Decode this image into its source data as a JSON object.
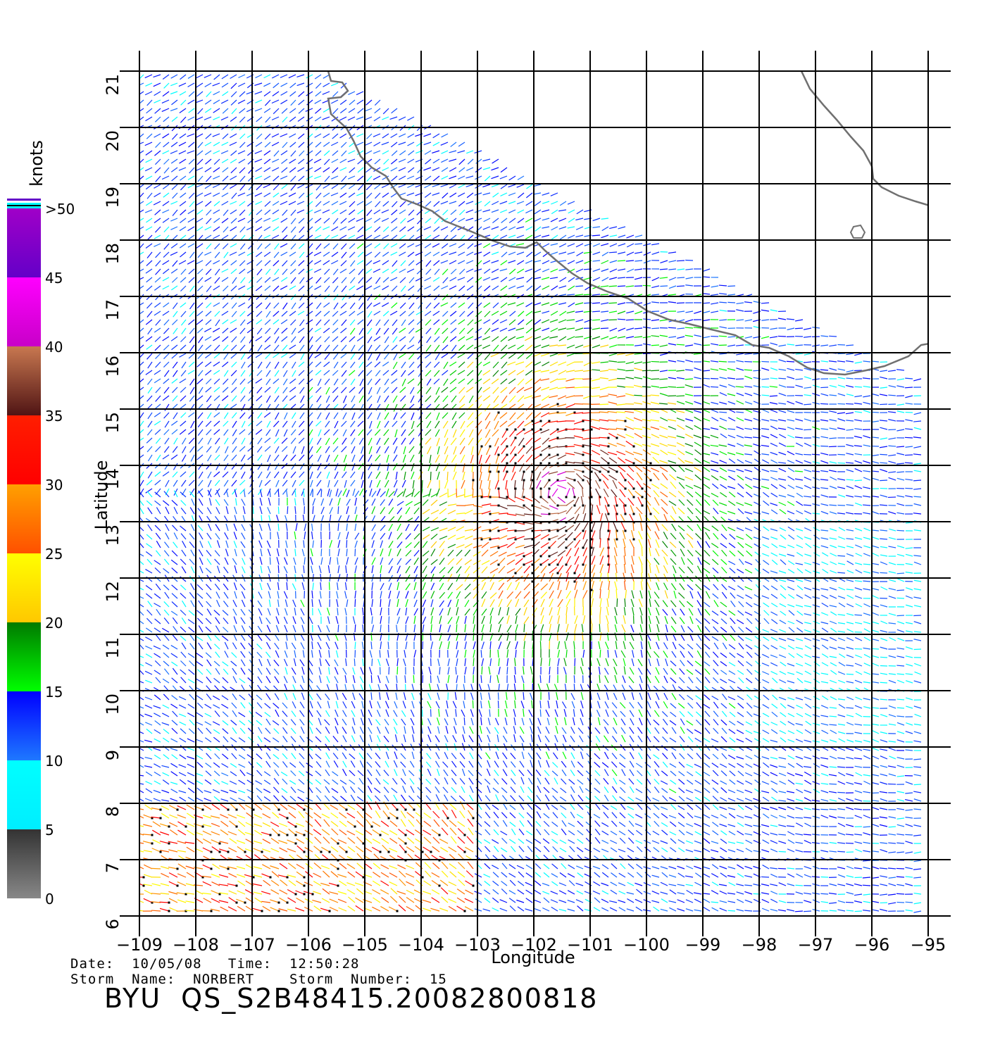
{
  "map": {
    "type": "wind-vector-map",
    "x_axis": {
      "label": "Longitude",
      "range": [
        -109,
        -94.6
      ],
      "ticks": [
        -109,
        -108,
        -107,
        -106,
        -105,
        -104,
        -103,
        -102,
        -101,
        -100,
        -99,
        -98,
        -97,
        -96,
        -95
      ],
      "tick_labels": [
        "−109",
        "−108",
        "−107",
        "−106",
        "−105",
        "−104",
        "−103",
        "−102",
        "−101",
        "−100",
        "−99",
        "−98",
        "−97",
        "−96",
        "−95"
      ]
    },
    "y_axis": {
      "label": "Latitude",
      "range": [
        6,
        21
      ],
      "ticks": [
        6,
        7,
        8,
        9,
        10,
        11,
        12,
        13,
        14,
        15,
        16,
        17,
        18,
        19,
        20,
        21
      ],
      "tick_labels": [
        "6",
        "7",
        "8",
        "9",
        "10",
        "11",
        "12",
        "13",
        "14",
        "15",
        "16",
        "17",
        "18",
        "19",
        "20",
        "21"
      ]
    },
    "grid": true,
    "storm_center_approx": {
      "lon": -101.5,
      "lat": 13.5
    }
  },
  "colorbar": {
    "unit": "knots",
    "labels": [
      "0",
      "5",
      "10",
      "15",
      "20",
      "25",
      "30",
      "35",
      "40",
      "45",
      ">50"
    ],
    "bands": [
      {
        "from": 0,
        "to": 5,
        "top": "#333333",
        "bottom": "#888888"
      },
      {
        "from": 5,
        "to": 10,
        "top": "#00ffff",
        "bottom": "#00eeff"
      },
      {
        "from": 10,
        "to": 15,
        "top": "#0000ff",
        "bottom": "#1e78ff"
      },
      {
        "from": 15,
        "to": 20,
        "top": "#007a00",
        "bottom": "#00ff00"
      },
      {
        "from": 20,
        "to": 25,
        "top": "#ffff00",
        "bottom": "#ffc800"
      },
      {
        "from": 25,
        "to": 30,
        "top": "#ffa000",
        "bottom": "#ff5000"
      },
      {
        "from": 30,
        "to": 35,
        "top": "#ff1e00",
        "bottom": "#ff0000"
      },
      {
        "from": 35,
        "to": 40,
        "top": "#c87850",
        "bottom": "#501414"
      },
      {
        "from": 40,
        "to": 45,
        "top": "#ff00ff",
        "bottom": "#c800c8"
      },
      {
        "from": 45,
        "to": 50,
        "top": "#a000c8",
        "bottom": "#6400c8"
      }
    ]
  },
  "footer": {
    "date_line": "Date:  10/05/08   Time:  12:50:28",
    "storm_line": "Storm  Name:  NORBERT    Storm  Number:  15",
    "title": "BYU  QS_S2B48415.20082800818"
  }
}
